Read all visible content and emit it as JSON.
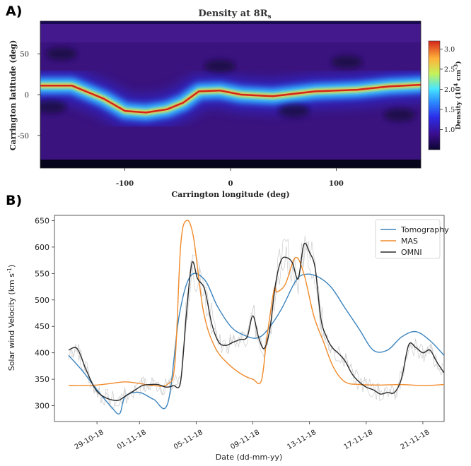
{
  "panels": [
    {
      "label": "A)",
      "chart_data": {
        "type": "heatmap",
        "title": "Density at 8R",
        "title_subscript": "s",
        "xlabel": "Carrington longitude (deg)",
        "ylabel": "Carrington latitude (deg)",
        "xlim": [
          -180,
          180
        ],
        "ylim": [
          -90,
          90
        ],
        "xticks": [
          "-100",
          "0",
          "100"
        ],
        "yticks": [
          "50",
          "0",
          "-50"
        ],
        "colorbar": {
          "label_main": "Density (10",
          "label_exp": "4",
          "label_unit": " cm",
          "label_unit_exp": "-3",
          "label_close": ")",
          "ticks": [
            "3.0",
            "2.5",
            "2.0",
            "1.5",
            "1.0"
          ],
          "range": [
            0.5,
            3.2
          ],
          "colormap": [
            "#0b0630",
            "#3a0d8c",
            "#2b2de8",
            "#2b8cff",
            "#48e6ff",
            "#c6f25a",
            "#ffb13a",
            "#d4251a"
          ]
        },
        "streamer_belt": {
          "points": [
            [
              -180,
              11
            ],
            [
              -150,
              11
            ],
            [
              -120,
              -5
            ],
            [
              -100,
              -20
            ],
            [
              -80,
              -22
            ],
            [
              -60,
              -18
            ],
            [
              -45,
              -10
            ],
            [
              -30,
              4
            ],
            [
              -10,
              5
            ],
            [
              10,
              0
            ],
            [
              40,
              -2
            ],
            [
              80,
              4
            ],
            [
              120,
              6
            ],
            [
              150,
              10
            ],
            [
              180,
              12
            ]
          ],
          "peak_density": 3.0,
          "base_density": 0.8
        }
      }
    },
    {
      "label": "B)",
      "chart_data": {
        "type": "line",
        "xlabel": "Date (dd-mm-yy)",
        "ylabel": "Solar wind Velocity (km s",
        "ylabel_exp": "-1",
        "ylabel_close": ")",
        "ylim": [
          270,
          660
        ],
        "xlim": [
          26.0,
          53.5
        ],
        "yticks": [
          300,
          350,
          400,
          450,
          500,
          550,
          600,
          650
        ],
        "xticks": [
          {
            "label": "29-10-18",
            "x": 29
          },
          {
            "label": "01-11-18",
            "x": 32
          },
          {
            "label": "05-11-18",
            "x": 36
          },
          {
            "label": "09-11-18",
            "x": 40
          },
          {
            "label": "13-11-18",
            "x": 44
          },
          {
            "label": "17-11-18",
            "x": 48
          },
          {
            "label": "21-11-18",
            "x": 52
          }
        ],
        "legend_position": "top-right",
        "series": [
          {
            "name": "Tomography",
            "color": "#3a83bd",
            "x": [
              27.0,
              28.0,
              29.0,
              30.0,
              30.6,
              31.0,
              32.0,
              33.0,
              34.0,
              34.8,
              35.6,
              36.6,
              37.5,
              38.5,
              39.5,
              40.3,
              41.0,
              42.0,
              43.0,
              43.6,
              44.5,
              45.5,
              46.5,
              47.5,
              48.5,
              49.5,
              50.5,
              51.5,
              52.5,
              53.5
            ],
            "y": [
              395,
              365,
              330,
              298,
              285,
              318,
              325,
              312,
              305,
              470,
              545,
              538,
              488,
              448,
              432,
              428,
              442,
              482,
              535,
              548,
              545,
              525,
              485,
              445,
              405,
              405,
              430,
              440,
              423,
              395
            ]
          },
          {
            "name": "MAS",
            "color": "#f08a2a",
            "x": [
              27.0,
              28.0,
              29.0,
              30.0,
              31.0,
              32.0,
              33.0,
              34.0,
              34.5,
              34.9,
              35.3,
              35.8,
              36.5,
              37.3,
              38.3,
              39.3,
              40.0,
              40.6,
              41.0,
              41.5,
              41.7,
              42.3,
              43.0,
              43.6,
              44.3,
              45.0,
              45.7,
              46.5,
              47.5,
              49.0,
              50.5,
              52.0,
              53.5
            ],
            "y": [
              338,
              338,
              339,
              342,
              345,
              342,
              338,
              341,
              380,
              600,
              650,
              620,
              480,
              412,
              378,
              358,
              350,
              347,
              430,
              520,
              515,
              530,
              580,
              550,
              470,
              420,
              372,
              345,
              340,
              339,
              340,
              338,
              340
            ]
          },
          {
            "name": "OMNI",
            "color": "#2a2a2a",
            "x": [
              27.0,
              27.6,
              28.2,
              28.8,
              29.3,
              29.9,
              30.5,
              31.0,
              31.6,
              32.2,
              32.8,
              33.3,
              33.9,
              34.4,
              34.9,
              35.3,
              35.7,
              36.1,
              36.6,
              37.1,
              37.6,
              38.1,
              38.6,
              39.1,
              39.6,
              40.0,
              40.4,
              40.8,
              41.2,
              41.6,
              42.0,
              42.4,
              42.8,
              43.2,
              43.6,
              44.0,
              44.4,
              44.8,
              45.2,
              45.6,
              46.0,
              46.5,
              47.0,
              47.5,
              48.0,
              48.5,
              49.0,
              49.5,
              50.0,
              50.5,
              51.0,
              51.5,
              52.0,
              52.5,
              53.0,
              53.5
            ],
            "y": [
              405,
              408,
              370,
              335,
              320,
              312,
              310,
              318,
              328,
              338,
              340,
              340,
              335,
              338,
              345,
              470,
              570,
              540,
              520,
              455,
              420,
              414,
              420,
              425,
              430,
              470,
              430,
              408,
              445,
              530,
              575,
              580,
              570,
              540,
              605,
              590,
              560,
              465,
              430,
              410,
              400,
              385,
              360,
              345,
              335,
              330,
              322,
              325,
              325,
              352,
              415,
              410,
              400,
              405,
              382,
              362
            ]
          }
        ],
        "raw_data_color": "#c8c8c8"
      }
    }
  ]
}
